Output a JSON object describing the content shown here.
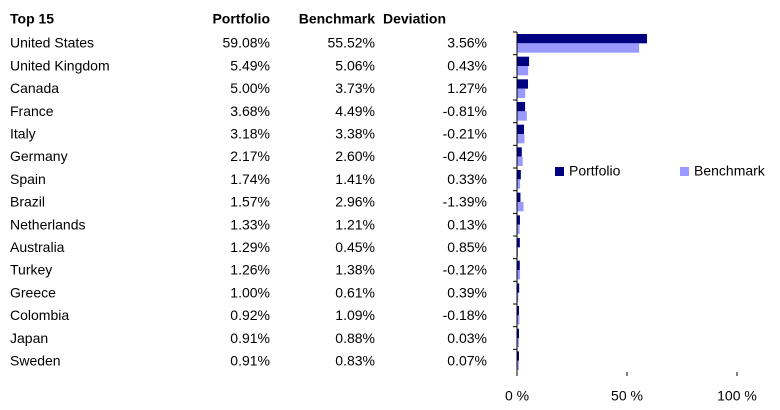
{
  "chart_data": {
    "type": "bar",
    "orientation": "horizontal",
    "title": "Top 15",
    "categories": [
      "United States",
      "United Kingdom",
      "Canada",
      "France",
      "Italy",
      "Germany",
      "Spain",
      "Brazil",
      "Netherlands",
      "Australia",
      "Turkey",
      "Greece",
      "Colombia",
      "Japan",
      "Sweden"
    ],
    "series": [
      {
        "name": "Portfolio",
        "color": "#000080",
        "values": [
          59.08,
          5.49,
          5.0,
          3.68,
          3.18,
          2.17,
          1.74,
          1.57,
          1.33,
          1.29,
          1.26,
          1.0,
          0.92,
          0.91,
          0.91
        ],
        "value_labels": [
          "59.08%",
          "5.49%",
          "5.00%",
          "3.68%",
          "3.18%",
          "2.17%",
          "1.74%",
          "1.57%",
          "1.33%",
          "1.29%",
          "1.26%",
          "1.00%",
          "0.92%",
          "0.91%",
          "0.91%"
        ]
      },
      {
        "name": "Benchmark",
        "color": "#9999ff",
        "values": [
          55.52,
          5.06,
          3.73,
          4.49,
          3.38,
          2.6,
          1.41,
          2.96,
          1.21,
          0.45,
          1.38,
          0.61,
          1.09,
          0.88,
          0.83
        ],
        "value_labels": [
          "55.52%",
          "5.06%",
          "3.73%",
          "4.49%",
          "3.38%",
          "2.60%",
          "1.41%",
          "2.96%",
          "1.21%",
          "0.45%",
          "1.38%",
          "0.61%",
          "1.09%",
          "0.88%",
          "0.83%"
        ]
      }
    ],
    "deviation": {
      "name": "Deviation",
      "values": [
        "3.56%",
        "0.43%",
        "1.27%",
        "-0.81%",
        "-0.21%",
        "-0.42%",
        "0.33%",
        "-1.39%",
        "0.13%",
        "0.85%",
        "-0.12%",
        "0.39%",
        "-0.18%",
        "0.03%",
        "0.07%"
      ]
    },
    "xlim": [
      0,
      100
    ],
    "xticks": [
      {
        "value": 0,
        "label": "0 %"
      },
      {
        "value": 50,
        "label": "50 %"
      },
      {
        "value": 100,
        "label": "100 %"
      }
    ],
    "legend": "right"
  }
}
